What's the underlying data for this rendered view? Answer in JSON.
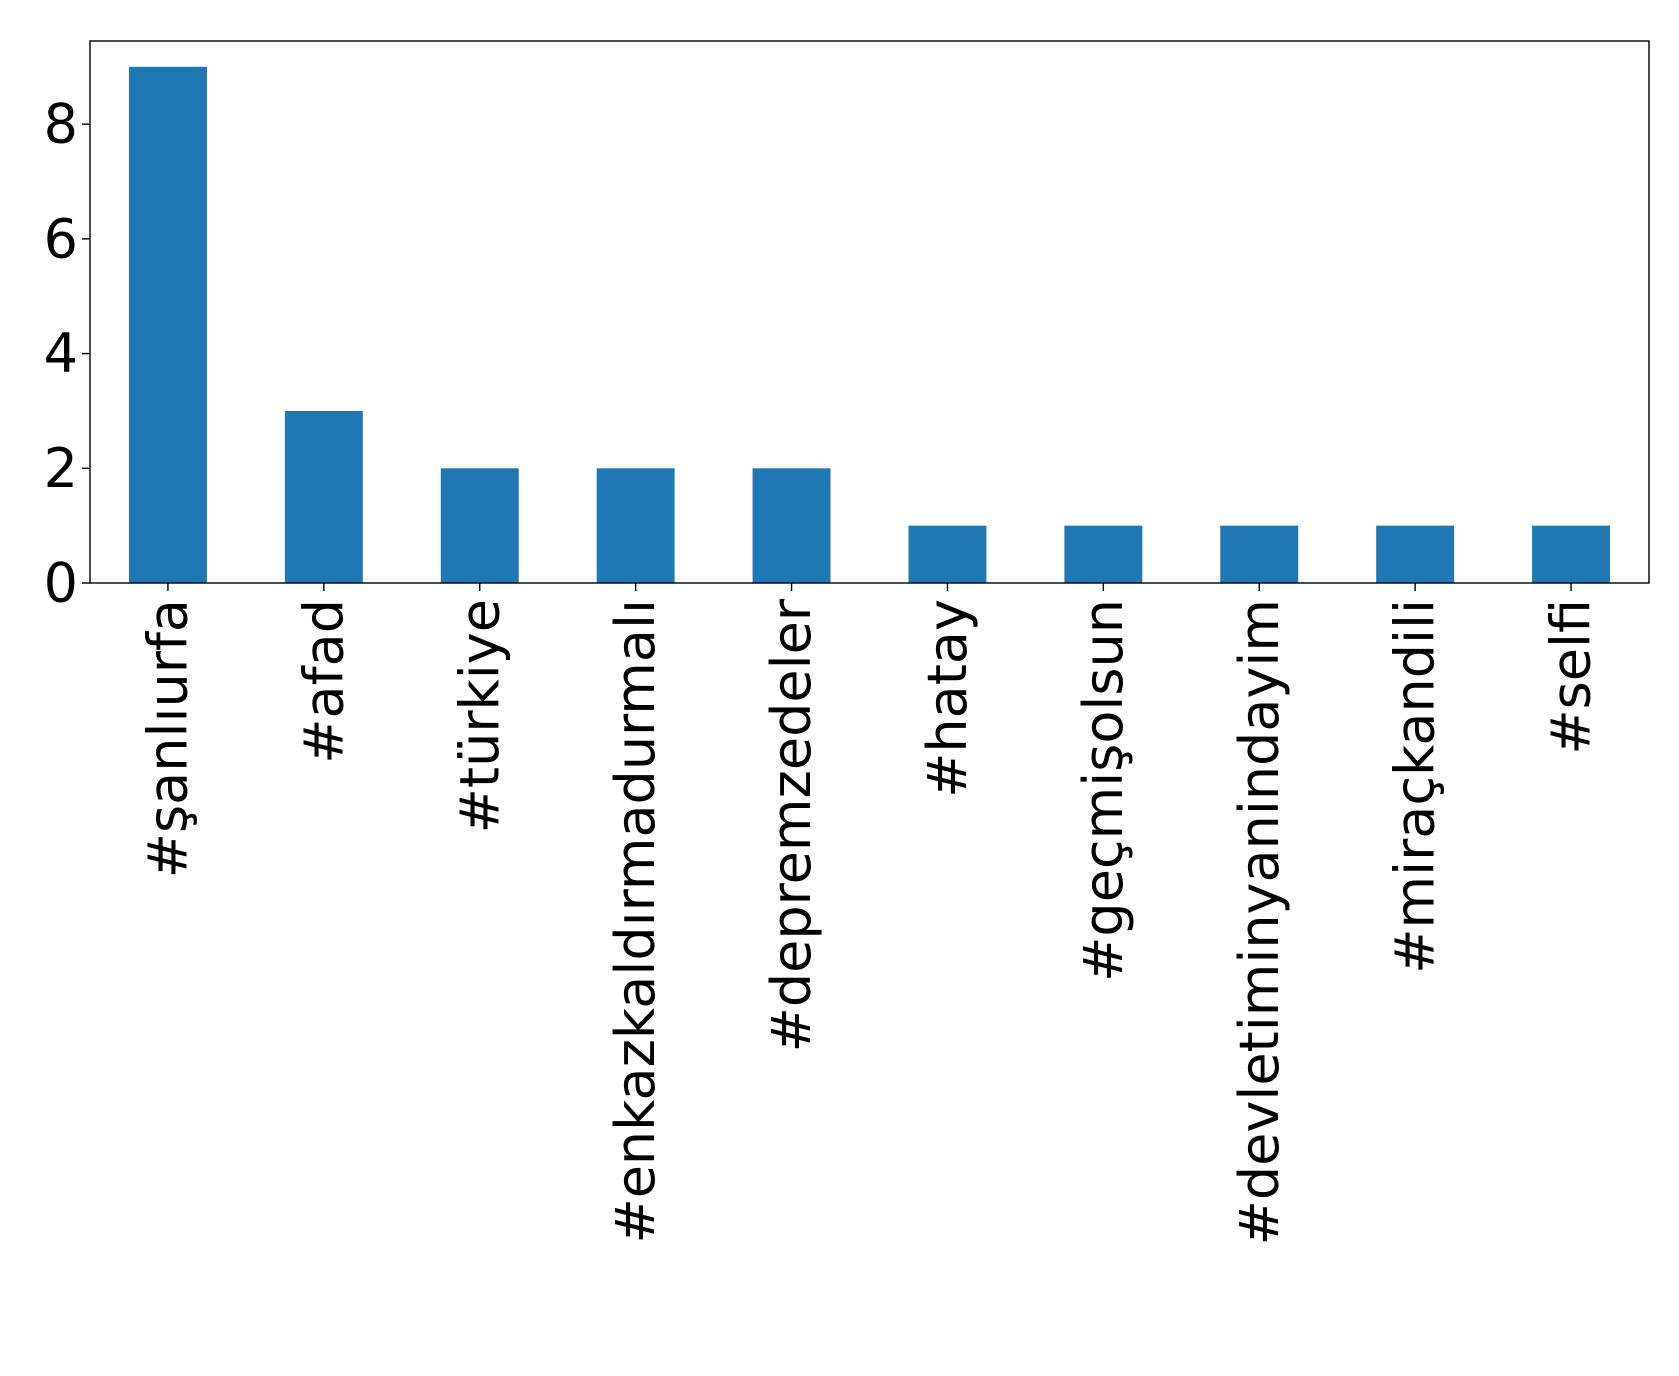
{
  "chart_data": {
    "type": "bar",
    "title": "",
    "xlabel": "",
    "ylabel": "",
    "categories": [
      "#şanlıurfa",
      "#afad",
      "#türkiye",
      "#enkazkaldırmadurmalı",
      "#depremzedeler",
      "#hatay",
      "#geçmişolsun",
      "#devletiminyanindayim",
      "#miraçkandili",
      "#selfi"
    ],
    "values": [
      9,
      3,
      2,
      2,
      2,
      1,
      1,
      1,
      1,
      1
    ],
    "ylim": [
      0,
      9.45
    ],
    "yticks": [
      0,
      2,
      4,
      6,
      8
    ],
    "bar_color": "#1f77b4",
    "grid": false,
    "legend": "none"
  }
}
